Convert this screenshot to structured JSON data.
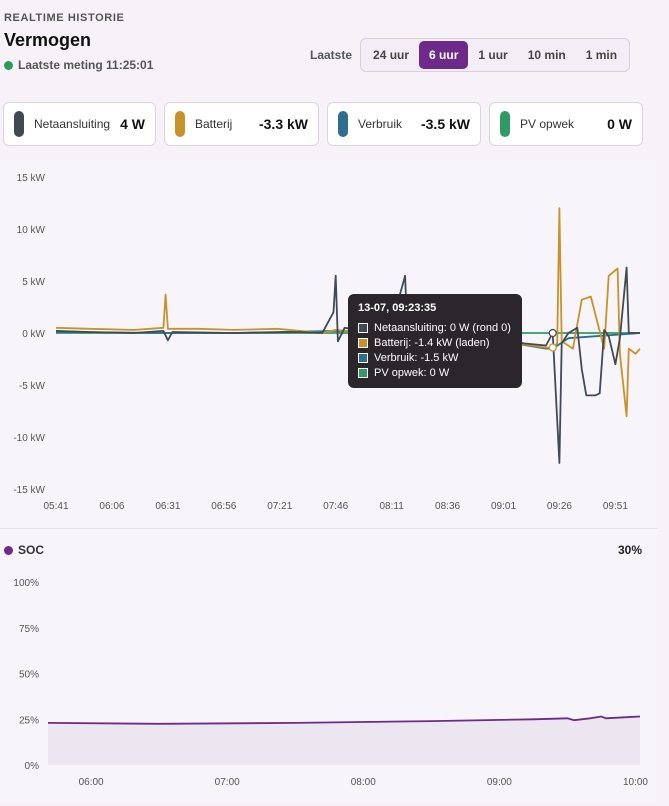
{
  "header": {
    "eyebrow": "REALTIME HISTORIE",
    "title": "Vermogen",
    "last_measurement": "Laatste meting 11:25:01",
    "status_color": "#2e9a5a"
  },
  "range": {
    "label": "Laatste",
    "options": [
      "24 uur",
      "6 uur",
      "1 uur",
      "10 min",
      "1 min"
    ],
    "selected": "6 uur"
  },
  "cards": [
    {
      "label": "Netaansluiting",
      "value": "4 W",
      "color": "#3f4a55"
    },
    {
      "label": "Batterij",
      "value": "-3.3 kW",
      "color": "#c8922a"
    },
    {
      "label": "Verbruik",
      "value": "-3.5 kW",
      "color": "#2e6e8e"
    },
    {
      "label": "PV opwek",
      "value": "0 W",
      "color": "#2f9a64"
    }
  ],
  "tooltip": {
    "title": "13-07, 09:23:35",
    "rows": [
      {
        "text": "Netaansluiting: 0 W (rond 0)",
        "color": "#3f4a55"
      },
      {
        "text": "Batterij: -1.4 kW (laden)",
        "color": "#c8922a"
      },
      {
        "text": "Verbruik: -1.5 kW",
        "color": "#2e6e8e"
      },
      {
        "text": "PV opwek: 0 W",
        "color": "#2f9a64"
      }
    ]
  },
  "soc": {
    "label": "SOC",
    "value": "30%",
    "color": "#6d2a8a"
  },
  "chart_data": [
    {
      "type": "line",
      "ylim": [
        -15,
        15
      ],
      "xlim": [
        "05:41",
        "10:02"
      ],
      "yticks": [
        "15 kW",
        "10 kW",
        "5 kW",
        "0 kW",
        "-5 kW",
        "-10 kW",
        "-15 kW"
      ],
      "ytick_values": [
        15,
        10,
        5,
        0,
        -5,
        -10,
        -15
      ],
      "xticks": [
        "05:41",
        "06:06",
        "06:31",
        "06:56",
        "07:21",
        "07:46",
        "08:11",
        "08:36",
        "09:01",
        "09:26",
        "09:51"
      ],
      "grid": false,
      "series": [
        {
          "name": "Netaansluiting",
          "color": "#3f4a55",
          "points": [
            [
              "05:41",
              0.2
            ],
            [
              "05:56",
              0.1
            ],
            [
              "06:16",
              0.0
            ],
            [
              "06:29",
              0.2
            ],
            [
              "06:31",
              -0.7
            ],
            [
              "06:33",
              0.1
            ],
            [
              "07:00",
              0.0
            ],
            [
              "07:30",
              0.1
            ],
            [
              "07:40",
              0.0
            ],
            [
              "07:45",
              2.0
            ],
            [
              "07:46",
              5.5
            ],
            [
              "07:47",
              -0.8
            ],
            [
              "07:50",
              0.5
            ],
            [
              "08:00",
              0.2
            ],
            [
              "08:10",
              0.0
            ],
            [
              "08:17",
              5.5
            ],
            [
              "08:18",
              0.0
            ],
            [
              "08:40",
              0.1
            ],
            [
              "08:50",
              0.0
            ],
            [
              "09:00",
              -0.3
            ],
            [
              "09:10",
              -1.0
            ],
            [
              "09:20",
              -1.2
            ],
            [
              "09:23",
              0.0
            ],
            [
              "09:26",
              -12.5
            ],
            [
              "09:27",
              -1.0
            ],
            [
              "09:30",
              0.0
            ],
            [
              "09:34",
              0.5
            ],
            [
              "09:36",
              -3.5
            ],
            [
              "09:38",
              -6.0
            ],
            [
              "09:42",
              -6.0
            ],
            [
              "09:44",
              -5.8
            ],
            [
              "09:46",
              0.3
            ],
            [
              "09:48",
              -0.3
            ],
            [
              "09:51",
              -3.0
            ],
            [
              "09:53",
              -0.5
            ],
            [
              "09:56",
              6.3
            ],
            [
              "09:57",
              0.0
            ],
            [
              "10:02",
              0.0
            ]
          ]
        },
        {
          "name": "Batterij",
          "color": "#c8922a",
          "points": [
            [
              "05:41",
              0.5
            ],
            [
              "05:56",
              0.4
            ],
            [
              "06:16",
              0.3
            ],
            [
              "06:29",
              0.5
            ],
            [
              "06:30",
              3.7
            ],
            [
              "06:31",
              0.4
            ],
            [
              "06:45",
              0.4
            ],
            [
              "07:00",
              0.3
            ],
            [
              "07:20",
              0.4
            ],
            [
              "07:40",
              0.0
            ],
            [
              "07:46",
              0.3
            ],
            [
              "08:00",
              0.0
            ],
            [
              "08:30",
              0.0
            ],
            [
              "09:00",
              -0.8
            ],
            [
              "09:20",
              -1.4
            ],
            [
              "09:23",
              -1.4
            ],
            [
              "09:25",
              -1.0
            ],
            [
              "09:26",
              12.0
            ],
            [
              "09:27",
              -0.8
            ],
            [
              "09:32",
              -1.5
            ],
            [
              "09:36",
              3.2
            ],
            [
              "09:40",
              3.5
            ],
            [
              "09:46",
              -1.5
            ],
            [
              "09:48",
              5.5
            ],
            [
              "09:52",
              6.2
            ],
            [
              "09:53",
              -2.0
            ],
            [
              "09:56",
              -8.0
            ],
            [
              "09:57",
              -1.5
            ],
            [
              "10:00",
              -2.0
            ],
            [
              "10:02",
              -1.5
            ]
          ]
        },
        {
          "name": "Verbruik",
          "color": "#2e6e8e",
          "points": [
            [
              "05:41",
              0.1
            ],
            [
              "06:30",
              0.0
            ],
            [
              "07:00",
              0.0
            ],
            [
              "07:46",
              0.2
            ],
            [
              "08:30",
              0.0
            ],
            [
              "09:00",
              -0.8
            ],
            [
              "09:20",
              -1.5
            ],
            [
              "09:23",
              -1.5
            ],
            [
              "09:30",
              -0.5
            ],
            [
              "10:02",
              0.0
            ]
          ]
        },
        {
          "name": "PV opwek",
          "color": "#2f9a64",
          "points": [
            [
              "05:41",
              0.0
            ],
            [
              "10:02",
              0.0
            ]
          ]
        }
      ]
    },
    {
      "type": "area",
      "title": "SOC",
      "ylim": [
        0,
        100
      ],
      "yticks": [
        "100%",
        "75%",
        "50%",
        "25%",
        "0%"
      ],
      "ytick_values": [
        100,
        75,
        50,
        25,
        0
      ],
      "xticks": [
        "06:00",
        "07:00",
        "08:00",
        "09:00",
        "10:00"
      ],
      "xlim": [
        "05:41",
        "10:02"
      ],
      "grid": false,
      "series": [
        {
          "name": "SOC",
          "color": "#6d2a8a",
          "points": [
            [
              "05:41",
              23
            ],
            [
              "06:30",
              22.5
            ],
            [
              "07:30",
              23
            ],
            [
              "08:30",
              24
            ],
            [
              "09:15",
              25
            ],
            [
              "09:30",
              25.5
            ],
            [
              "09:33",
              24.5
            ],
            [
              "09:40",
              25.5
            ],
            [
              "09:45",
              26.5
            ],
            [
              "09:47",
              25.5
            ],
            [
              "10:02",
              26.5
            ]
          ]
        }
      ]
    }
  ]
}
